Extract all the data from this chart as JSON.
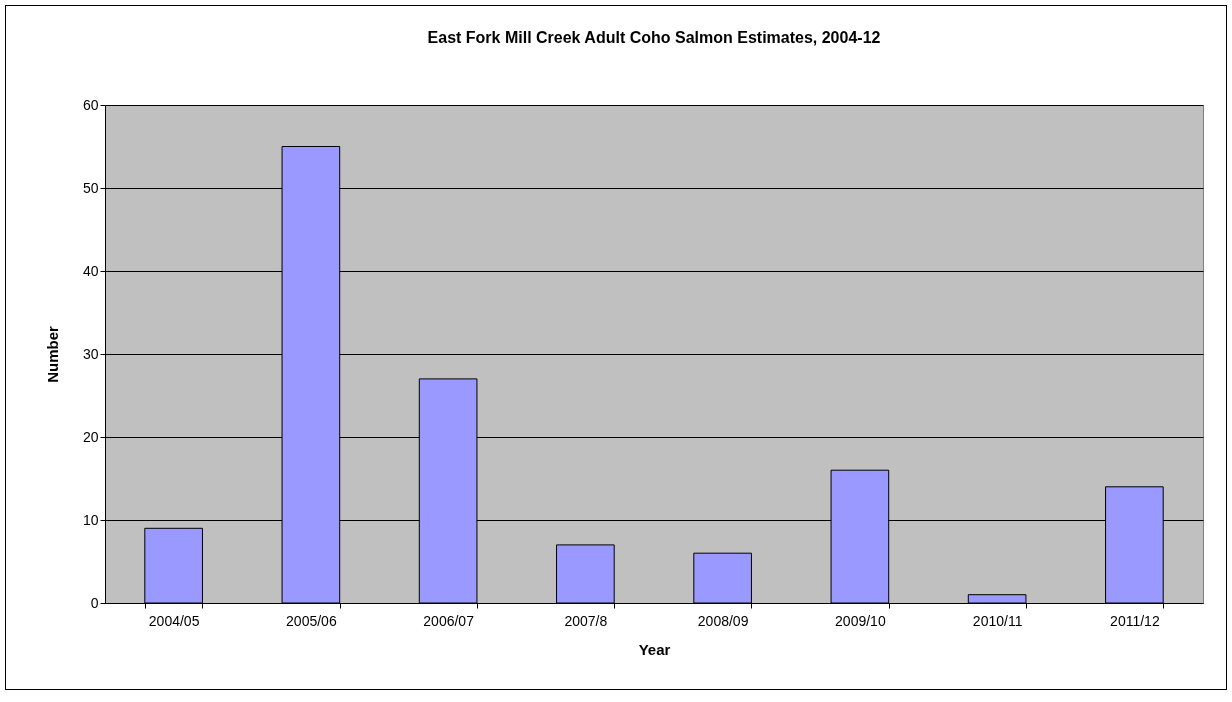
{
  "chart_data": {
    "type": "bar",
    "title": "East Fork Mill Creek Adult Coho Salmon Estimates, 2004-12",
    "xlabel": "Year",
    "ylabel": "Number",
    "categories": [
      "2004/05",
      "2005/06",
      "2006/07",
      "2007/8",
      "2008/09",
      "2009/10",
      "2010/11",
      "2011/12"
    ],
    "values": [
      9,
      55,
      27,
      7,
      6,
      16,
      1,
      14
    ],
    "color": "#9999ff",
    "ylim": [
      0,
      60
    ],
    "yticks": [
      0,
      10,
      20,
      30,
      40,
      50,
      60
    ],
    "grid": "y"
  }
}
